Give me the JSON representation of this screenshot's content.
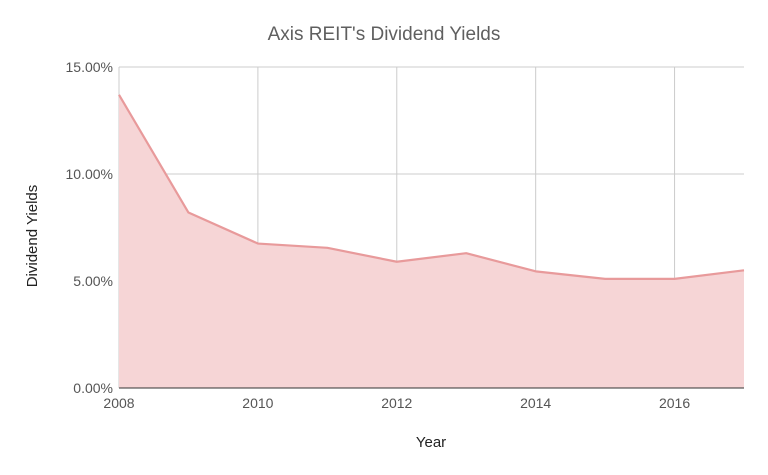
{
  "chart_data": {
    "type": "area",
    "title": "Axis REIT's Dividend Yields",
    "xlabel": "Year",
    "ylabel": "Dividend Yields",
    "x": [
      2008,
      2009,
      2010,
      2011,
      2012,
      2013,
      2014,
      2015,
      2016,
      2017
    ],
    "series": [
      {
        "values": [
          13.7,
          8.2,
          6.75,
          6.55,
          5.9,
          6.3,
          5.45,
          5.1,
          5.1,
          5.5
        ]
      }
    ],
    "xlim": [
      2008,
      2017
    ],
    "ylim": [
      0,
      15
    ],
    "xticks": [
      2008,
      2010,
      2012,
      2014,
      2016
    ],
    "xtick_labels": [
      "2008",
      "2010",
      "2012",
      "2014",
      "2016"
    ],
    "yticks": [
      0,
      5,
      10,
      15
    ],
    "ytick_labels": [
      "0.00%",
      "5.00%",
      "10.00%",
      "15.00%"
    ],
    "grid": true,
    "legend": "none",
    "colors": {
      "line": "#e89a9b",
      "fill": "#f6d5d6"
    }
  }
}
